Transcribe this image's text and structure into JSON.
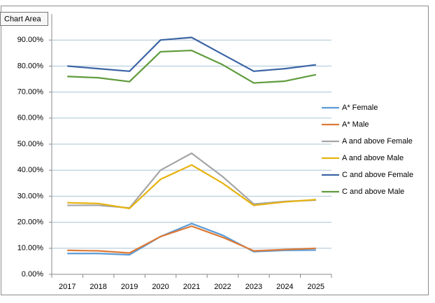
{
  "chart_data": {
    "type": "line",
    "categories": [
      "2017",
      "2018",
      "2019",
      "2020",
      "2021",
      "2022",
      "2023",
      "2024",
      "2025"
    ],
    "series": [
      {
        "name": "A* Female",
        "color": "#5b9bd5",
        "values": [
          8,
          8,
          7.5,
          14.5,
          19.5,
          15,
          8.7,
          9.2,
          9.3
        ]
      },
      {
        "name": "A* Male",
        "color": "#dd7a36",
        "values": [
          9.2,
          9,
          8.2,
          14.5,
          18.5,
          14.2,
          9,
          9.5,
          10
        ]
      },
      {
        "name": "A and above Female",
        "color": "#a5a5a5",
        "values": [
          26.5,
          26.5,
          25.5,
          40,
          46.5,
          37.5,
          27,
          28,
          28.5
        ]
      },
      {
        "name": "A and above Male",
        "color": "#e6b20f",
        "values": [
          27.5,
          27.2,
          25.3,
          36.5,
          42,
          35,
          26.5,
          27.8,
          28.7
        ]
      },
      {
        "name": "C and above Female",
        "color": "#3c64a5",
        "values": [
          80,
          79,
          78,
          90,
          91,
          84.5,
          78,
          79,
          80.5
        ]
      },
      {
        "name": "C and above Male",
        "color": "#5f9b3c",
        "values": [
          76,
          75.5,
          74,
          85.5,
          86,
          80.5,
          73.5,
          74.2,
          76.7
        ]
      }
    ],
    "ylim": [
      0,
      100
    ],
    "yticks": [
      {
        "value": 0,
        "label": "0.00%"
      },
      {
        "value": 10,
        "label": "10.00%"
      },
      {
        "value": 20,
        "label": "20.00%"
      },
      {
        "value": 30,
        "label": "30.00%"
      },
      {
        "value": 40,
        "label": "40.00%"
      },
      {
        "value": 50,
        "label": "50.00%"
      },
      {
        "value": 60,
        "label": "60.00%"
      },
      {
        "value": 70,
        "label": "70.00%"
      },
      {
        "value": 80,
        "label": "80.00%"
      },
      {
        "value": 90,
        "label": "90.00%"
      }
    ],
    "grid": true,
    "legend": "right"
  },
  "tooltip": "Chart Area"
}
